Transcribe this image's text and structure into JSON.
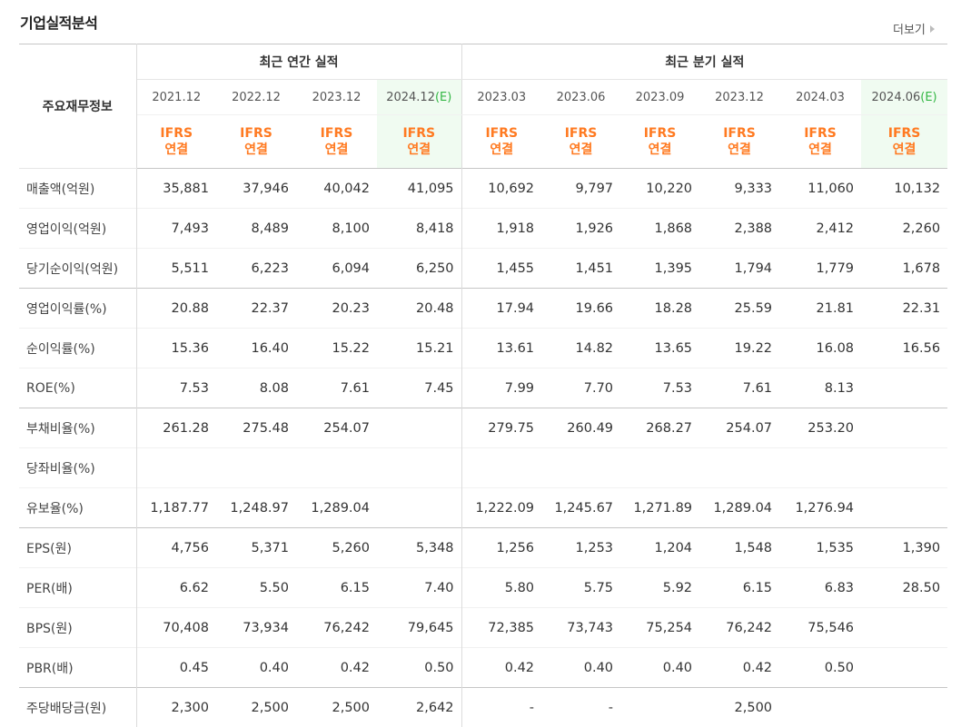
{
  "title": "기업실적분석",
  "more_label": "더보기",
  "header": {
    "row_header": "주요재무정보",
    "annual_group": "최근 연간 실적",
    "quarter_group": "최근 분기 실적",
    "annual_periods": [
      "2021.12",
      "2022.12",
      "2023.12",
      "2024.12"
    ],
    "annual_est_suffix": "(E)",
    "quarter_periods": [
      "2023.03",
      "2023.06",
      "2023.09",
      "2023.12",
      "2024.03",
      "2024.06"
    ],
    "quarter_est_suffix": "(E)",
    "basis_line1": "IFRS",
    "basis_line2": "연결"
  },
  "rows": [
    {
      "label": "매출액(억원)",
      "values": [
        "35,881",
        "37,946",
        "40,042",
        "41,095",
        "10,692",
        "9,797",
        "10,220",
        "9,333",
        "11,060",
        "10,132"
      ]
    },
    {
      "label": "영업이익(억원)",
      "values": [
        "7,493",
        "8,489",
        "8,100",
        "8,418",
        "1,918",
        "1,926",
        "1,868",
        "2,388",
        "2,412",
        "2,260"
      ]
    },
    {
      "label": "당기순이익(억원)",
      "values": [
        "5,511",
        "6,223",
        "6,094",
        "6,250",
        "1,455",
        "1,451",
        "1,395",
        "1,794",
        "1,779",
        "1,678"
      ]
    },
    {
      "label": "영업이익률(%)",
      "values": [
        "20.88",
        "22.37",
        "20.23",
        "20.48",
        "17.94",
        "19.66",
        "18.28",
        "25.59",
        "21.81",
        "22.31"
      ]
    },
    {
      "label": "순이익률(%)",
      "values": [
        "15.36",
        "16.40",
        "15.22",
        "15.21",
        "13.61",
        "14.82",
        "13.65",
        "19.22",
        "16.08",
        "16.56"
      ]
    },
    {
      "label": "ROE(%)",
      "values": [
        "7.53",
        "8.08",
        "7.61",
        "7.45",
        "7.99",
        "7.70",
        "7.53",
        "7.61",
        "8.13",
        ""
      ]
    },
    {
      "label": "부채비율(%)",
      "values": [
        "261.28",
        "275.48",
        "254.07",
        "",
        "279.75",
        "260.49",
        "268.27",
        "254.07",
        "253.20",
        ""
      ]
    },
    {
      "label": "당좌비율(%)",
      "values": [
        "",
        "",
        "",
        "",
        "",
        "",
        "",
        "",
        "",
        ""
      ]
    },
    {
      "label": "유보율(%)",
      "values": [
        "1,187.77",
        "1,248.97",
        "1,289.04",
        "",
        "1,222.09",
        "1,245.67",
        "1,271.89",
        "1,289.04",
        "1,276.94",
        ""
      ]
    },
    {
      "label": "EPS(원)",
      "values": [
        "4,756",
        "5,371",
        "5,260",
        "5,348",
        "1,256",
        "1,253",
        "1,204",
        "1,548",
        "1,535",
        "1,390"
      ]
    },
    {
      "label": "PER(배)",
      "values": [
        "6.62",
        "5.50",
        "6.15",
        "7.40",
        "5.80",
        "5.75",
        "5.92",
        "6.15",
        "6.83",
        "28.50"
      ]
    },
    {
      "label": "BPS(원)",
      "values": [
        "70,408",
        "73,934",
        "76,242",
        "79,645",
        "72,385",
        "73,743",
        "75,254",
        "76,242",
        "75,546",
        ""
      ]
    },
    {
      "label": "PBR(배)",
      "values": [
        "0.45",
        "0.40",
        "0.42",
        "0.50",
        "0.42",
        "0.40",
        "0.40",
        "0.42",
        "0.50",
        ""
      ]
    },
    {
      "label": "주당배당금(원)",
      "values": [
        "2,300",
        "2,500",
        "2,500",
        "2,642",
        "-",
        "-",
        "",
        "2,500",
        "",
        ""
      ]
    }
  ],
  "colors": {
    "accent": "#ff7a21",
    "estimate_bg": "#f0fbf1",
    "estimate_text": "#33b744"
  }
}
